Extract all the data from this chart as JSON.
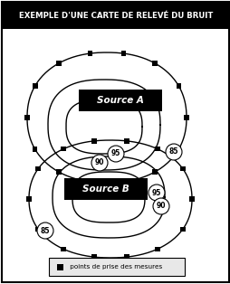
{
  "title": "EXEMPLE D'UNE CARTE DE RELEVÉ DU BRUIT",
  "title_bg": "#000000",
  "title_color": "#ffffff",
  "bg_color": "#ffffff",
  "border_color": "#000000",
  "source_a_label": "Source A",
  "source_b_label": "Source B",
  "legend_text": " points de prise des mesures",
  "label_85": "85",
  "label_90": "90",
  "label_95": "95",
  "fig_w": 2.55,
  "fig_h": 3.14,
  "dpi": 100
}
